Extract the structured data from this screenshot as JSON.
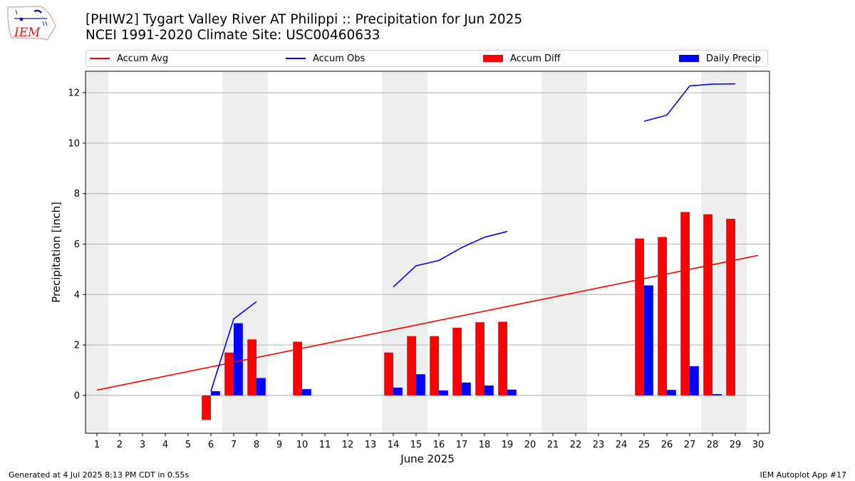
{
  "header": {
    "title_line1": "[PHIW2] Tygart Valley River  AT Philippi :: Precipitation for Jun 2025",
    "title_line2": "NCEI 1991-2020 Climate Site: USC00460633",
    "logo_text": "IEM"
  },
  "legend": {
    "accum_avg": "Accum Avg",
    "accum_obs": "Accum Obs",
    "accum_diff": "Accum Diff",
    "daily_precip": "Daily Precip"
  },
  "footer": {
    "left": "Generated at 4 Jul 2025 8:13 PM CDT in 0.55s",
    "right": "IEM Autoplot App #17"
  },
  "colors": {
    "accum_avg": "#ff0000",
    "accum_obs": "#0000ff",
    "accum_diff": "#ff0000",
    "daily_precip": "#0000ff",
    "weekend_shade": "#eeeeee",
    "grid": "#b0b0b0"
  },
  "chart_data": {
    "type": "bar",
    "xlabel": "June 2025",
    "ylabel": "Precipitation [inch]",
    "xlim": [
      0.5,
      30.5
    ],
    "ylim": [
      -1.5,
      12.85
    ],
    "x_ticks": [
      1,
      2,
      3,
      4,
      5,
      6,
      7,
      8,
      9,
      10,
      11,
      12,
      13,
      14,
      15,
      16,
      17,
      18,
      19,
      20,
      21,
      22,
      23,
      24,
      25,
      26,
      27,
      28,
      29,
      30
    ],
    "y_ticks": [
      0,
      2,
      4,
      6,
      8,
      10,
      12
    ],
    "grid": "horizontal",
    "legend_position": "top",
    "weekend_days": [
      1,
      7,
      8,
      14,
      15,
      21,
      22,
      28,
      29
    ],
    "accum_avg": {
      "x": [
        1,
        30
      ],
      "y": [
        0.21,
        5.55
      ]
    },
    "accum_obs": [
      {
        "x": [
          6,
          7,
          8
        ],
        "y": [
          0.17,
          3.03,
          3.72
        ]
      },
      {
        "x": [
          14,
          15,
          16,
          17,
          18,
          19
        ],
        "y": [
          4.3,
          5.14,
          5.35,
          5.86,
          6.27,
          6.5
        ]
      },
      {
        "x": [
          25,
          26,
          27,
          28,
          29
        ],
        "y": [
          10.87,
          11.11,
          12.27,
          12.34,
          12.35
        ]
      }
    ],
    "accum_diff": {
      "x": [
        6,
        7,
        8,
        10,
        14,
        15,
        16,
        17,
        18,
        19,
        25,
        26,
        27,
        28,
        29
      ],
      "y": [
        -0.97,
        1.7,
        2.22,
        2.13,
        1.7,
        2.35,
        2.35,
        2.68,
        2.9,
        2.92,
        6.22,
        6.28,
        7.27,
        7.18,
        7.0
      ]
    },
    "daily_precip": {
      "x": [
        6,
        7,
        8,
        10,
        14,
        15,
        16,
        17,
        18,
        19,
        25,
        26,
        27,
        28
      ],
      "y": [
        0.17,
        2.86,
        0.69,
        0.25,
        0.31,
        0.84,
        0.2,
        0.51,
        0.39,
        0.23,
        4.36,
        0.22,
        1.16,
        0.05
      ]
    }
  }
}
